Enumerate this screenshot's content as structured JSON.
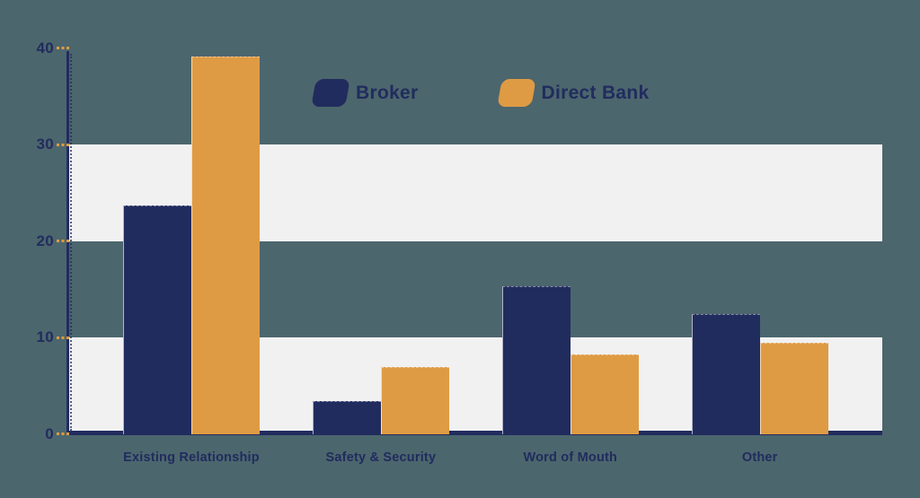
{
  "chart_data": {
    "type": "bar",
    "title": "",
    "categories": [
      "Existing Relationship",
      "Safety & Security",
      "Word of Mouth",
      "Other"
    ],
    "series": [
      {
        "name": "Broker",
        "color": "#212c5e",
        "values": [
          23.7,
          3.4,
          15.3,
          12.4
        ]
      },
      {
        "name": "Direct Bank",
        "color": "#df9b43",
        "values": [
          39.1,
          6.9,
          8.2,
          9.4
        ]
      }
    ],
    "yticks": [
      40,
      30,
      20,
      10,
      0
    ],
    "ylim": [
      0,
      40
    ],
    "band_rows": [
      [
        20,
        30
      ],
      [
        0,
        10
      ]
    ],
    "grid": "alternating horizontal bands, no vertical gridlines",
    "legend_position": "top-center"
  },
  "colors": {
    "background": "#4c666d",
    "band": "#f1f1f2",
    "axis": "#212c5e",
    "tick": "#df9b43",
    "label_text": "#212c5e"
  }
}
